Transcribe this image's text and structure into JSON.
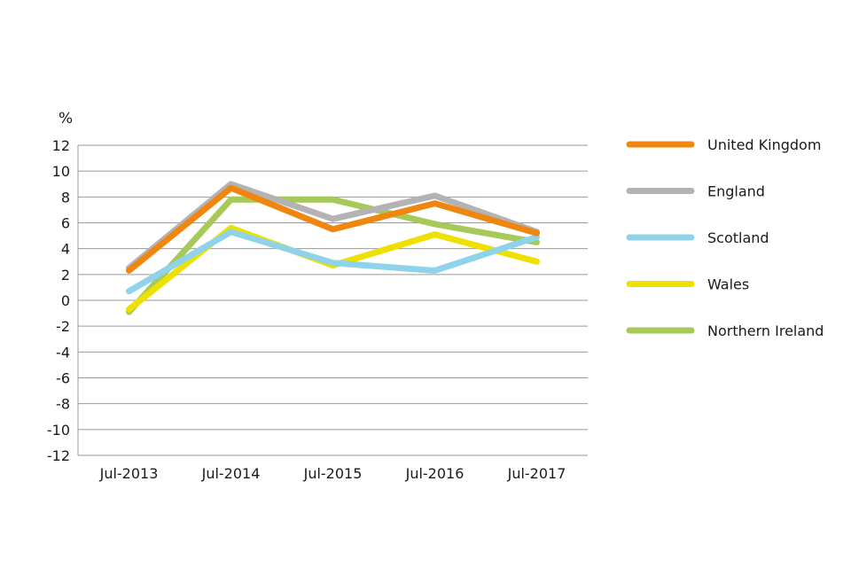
{
  "chart_data": {
    "type": "line",
    "title": "",
    "xlabel": "",
    "ylabel": "%",
    "ylim": [
      -12,
      12
    ],
    "yticks": [
      12,
      10,
      8,
      6,
      4,
      2,
      0,
      -2,
      -4,
      -6,
      -8,
      -10,
      -12
    ],
    "grid": true,
    "legend_position": "right",
    "categories": [
      "Jul-2013",
      "Jul-2014",
      "Jul-2015",
      "Jul-2016",
      "Jul-2017"
    ],
    "series": [
      {
        "name": "United Kingdom",
        "color": "#f0860f",
        "values": [
          2.3,
          8.7,
          5.5,
          7.5,
          5.2
        ]
      },
      {
        "name": "England",
        "color": "#b3b3b3",
        "values": [
          2.5,
          9.0,
          6.3,
          8.1,
          5.3
        ]
      },
      {
        "name": "Scotland",
        "color": "#8fd3ea",
        "values": [
          0.7,
          5.3,
          2.9,
          2.3,
          4.9
        ]
      },
      {
        "name": "Wales",
        "color": "#eee000",
        "values": [
          -0.7,
          5.6,
          2.7,
          5.1,
          3.0
        ]
      },
      {
        "name": "Northern Ireland",
        "color": "#a6c957",
        "values": [
          -0.9,
          7.8,
          7.8,
          5.9,
          4.5
        ]
      }
    ]
  }
}
